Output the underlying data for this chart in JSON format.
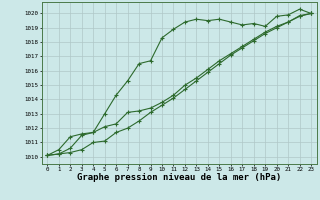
{
  "x": [
    0,
    1,
    2,
    3,
    4,
    5,
    6,
    7,
    8,
    9,
    10,
    11,
    12,
    13,
    14,
    15,
    16,
    17,
    18,
    19,
    20,
    21,
    22,
    23
  ],
  "line1": [
    1010.1,
    1010.2,
    1010.3,
    1010.5,
    1011.0,
    1011.1,
    1011.7,
    1012.0,
    1012.5,
    1013.1,
    1013.6,
    1014.1,
    1014.7,
    1015.3,
    1015.9,
    1016.5,
    1017.1,
    1017.6,
    1018.1,
    1018.6,
    1019.0,
    1019.4,
    1019.8,
    1020.0
  ],
  "line2": [
    1010.1,
    1010.2,
    1010.6,
    1011.5,
    1011.7,
    1013.0,
    1014.3,
    1015.3,
    1016.5,
    1016.7,
    1018.3,
    1018.9,
    1019.4,
    1019.6,
    1019.5,
    1019.6,
    1019.4,
    1019.2,
    1019.3,
    1019.1,
    1019.8,
    1019.9,
    1020.3,
    1020.0
  ],
  "line3": [
    1010.1,
    1010.5,
    1011.4,
    1011.6,
    1011.7,
    1012.1,
    1012.3,
    1013.1,
    1013.2,
    1013.4,
    1013.8,
    1014.3,
    1015.0,
    1015.5,
    1016.1,
    1016.7,
    1017.2,
    1017.7,
    1018.2,
    1018.7,
    1019.1,
    1019.4,
    1019.85,
    1020.0
  ],
  "ylim": [
    1009.5,
    1020.8
  ],
  "xlim": [
    -0.5,
    23.5
  ],
  "yticks": [
    1010,
    1011,
    1012,
    1013,
    1014,
    1015,
    1016,
    1017,
    1018,
    1019,
    1020
  ],
  "xticks": [
    0,
    1,
    2,
    3,
    4,
    5,
    6,
    7,
    8,
    9,
    10,
    11,
    12,
    13,
    14,
    15,
    16,
    17,
    18,
    19,
    20,
    21,
    22,
    23
  ],
  "line_color": "#2d6a2d",
  "bg_color": "#cce8e8",
  "grid_color": "#b0c8c8",
  "xlabel": "Graphe pression niveau de la mer (hPa)",
  "xlabel_fontsize": 6.5,
  "marker": "+",
  "markersize": 3.5,
  "linewidth": 0.8
}
